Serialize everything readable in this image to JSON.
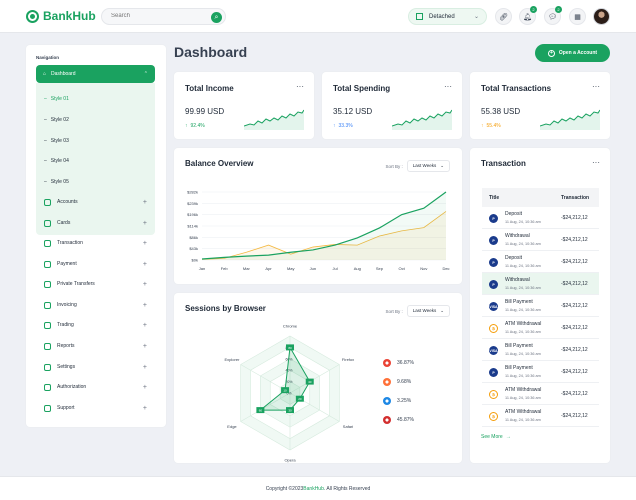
{
  "header": {
    "brand": "BankHub",
    "search_placeholder": "Search",
    "layout_label": "Detached",
    "notification_count": "2",
    "message_count": "2"
  },
  "sidebar": {
    "title": "Navigation",
    "active_item": "Dashboard",
    "dashboard_styles": [
      "Style 01",
      "Style 02",
      "Style 03",
      "Style 04",
      "Style 05"
    ],
    "items": [
      {
        "label": "Accounts",
        "icon": "accounts-icon"
      },
      {
        "label": "Cards",
        "icon": "cards-icon"
      },
      {
        "label": "Transaction",
        "icon": "transaction-icon"
      },
      {
        "label": "Payment",
        "icon": "payment-icon"
      },
      {
        "label": "Private Transfers",
        "icon": "transfer-icon"
      },
      {
        "label": "Invoicing",
        "icon": "invoice-icon"
      },
      {
        "label": "Trading",
        "icon": "trading-icon"
      },
      {
        "label": "Reports",
        "icon": "reports-icon"
      },
      {
        "label": "Settings",
        "icon": "settings-icon"
      },
      {
        "label": "Authorization",
        "icon": "authorization-icon"
      },
      {
        "label": "Support",
        "icon": "support-icon"
      }
    ]
  },
  "main": {
    "title": "Dashboard",
    "open_account_label": "Open a Account",
    "stats": [
      {
        "title": "Total Income",
        "value": "99.99 USD",
        "change": "92.4%",
        "color": "#1aa260"
      },
      {
        "title": "Total Spending",
        "value": "35.12 USD",
        "change": "33.3%",
        "color": "#3b82f6"
      },
      {
        "title": "Total Transactions",
        "value": "55.38 USD",
        "change": "55.4%",
        "color": "#f59e0b"
      }
    ],
    "more_label": "···"
  },
  "balance": {
    "title": "Balance Overview",
    "sort_label": "Sort By :",
    "sort_value": "Last Weeks",
    "chart_data": {
      "type": "area",
      "x": [
        "Jan",
        "Feb",
        "Mar",
        "Apr",
        "May",
        "Jun",
        "Jul",
        "Aug",
        "Sep",
        "Oct",
        "Nov",
        "Dec"
      ],
      "y_ticks": [
        "$0k",
        "$43k",
        "$86k",
        "$114k",
        "$196k",
        "$239k",
        "$282k"
      ],
      "series": [
        {
          "values": [
            3,
            8,
            12,
            15,
            24,
            31,
            46,
            68,
            99,
            140,
            160,
            210
          ],
          "color": "#1aa260"
        },
        {
          "values": [
            2,
            5,
            24,
            46,
            18,
            40,
            48,
            46,
            74,
            90,
            100,
            150
          ],
          "color": "#f4b942"
        }
      ]
    }
  },
  "sessions": {
    "title": "Sessions by Browser",
    "sort_label": "Sort By :",
    "sort_value": "Last Weeks",
    "radar_ticks": [
      "0%",
      "20%",
      "40%",
      "60%",
      "80%"
    ],
    "chart_data": {
      "type": "radar",
      "axes": [
        "Chrome",
        "Firefox",
        "Safari",
        "Opera",
        "Edge",
        "Explorer"
      ],
      "values": [
        80,
        40,
        20,
        30,
        60,
        10
      ]
    },
    "legend": [
      {
        "value": "36.87%",
        "icon": "chrome-icon",
        "color": "#ea4335"
      },
      {
        "value": "9.68%",
        "icon": "firefox-icon",
        "color": "#ff7139"
      },
      {
        "value": "3.25%",
        "icon": "safari-icon",
        "color": "#1e88e5"
      },
      {
        "value": "45.87%",
        "icon": "opera-icon",
        "color": "#d32f2f"
      }
    ]
  },
  "transactions": {
    "title": "Transaction",
    "col_title": "Title",
    "col_amount": "Transaction",
    "rows": [
      {
        "name": "Deposit",
        "date": "11 Aug, 24, 10:36 am",
        "amount": "-$24,212,12",
        "icon": "paypal-icon",
        "icon_text": "P",
        "color": "#1a3b8c"
      },
      {
        "name": "Withdrawal",
        "date": "11 Aug, 24, 10:36 am",
        "amount": "-$24,212,12",
        "icon": "paypal-icon",
        "icon_text": "P",
        "color": "#1a3b8c"
      },
      {
        "name": "Deposit",
        "date": "11 Aug, 24, 10:36 am",
        "amount": "-$24,212,12",
        "icon": "paypal-icon",
        "icon_text": "P",
        "color": "#1a3b8c"
      },
      {
        "name": "Withdrawal",
        "date": "11 Aug, 24, 10:36 am",
        "amount": "-$24,212,12",
        "icon": "paypal-icon",
        "icon_text": "P",
        "color": "#1a3b8c"
      },
      {
        "name": "Bill Payment",
        "date": "11 Aug, 24, 10:36 am",
        "amount": "-$24,212,12",
        "icon": "visa-icon",
        "icon_text": "VISA",
        "color": "#1a3b8c"
      },
      {
        "name": "ATM Withdrawal",
        "date": "11 Aug, 24, 10:36 am",
        "amount": "-$24,212,12",
        "icon": "bitcoin-icon",
        "icon_text": "₿",
        "color": "#f59e0b"
      },
      {
        "name": "Bill Payment",
        "date": "11 Aug, 24, 10:36 am",
        "amount": "-$24,212,12",
        "icon": "visa-icon",
        "icon_text": "VISA",
        "color": "#1a3b8c"
      },
      {
        "name": "Bill Payment",
        "date": "11 Aug, 24, 10:36 am",
        "amount": "-$24,212,12",
        "icon": "paypal-icon",
        "icon_text": "P",
        "color": "#1a3b8c"
      },
      {
        "name": "ATM Withdrawal",
        "date": "11 Aug, 24, 10:36 am",
        "amount": "-$24,212,12",
        "icon": "bitcoin-icon",
        "icon_text": "₿",
        "color": "#f59e0b"
      },
      {
        "name": "ATM Withdrawal",
        "date": "11 Aug, 24, 10:36 am",
        "amount": "-$24,212,12",
        "icon": "bitcoin-icon",
        "icon_text": "₿",
        "color": "#f59e0b"
      }
    ],
    "see_more": "See More"
  },
  "footer": {
    "prefix": "Copyright ©2023 ",
    "brand": "BankHub",
    "suffix": ". All Rights Reserved"
  },
  "colors": {
    "accent": "#1aa260",
    "background": "#eef0f5"
  }
}
